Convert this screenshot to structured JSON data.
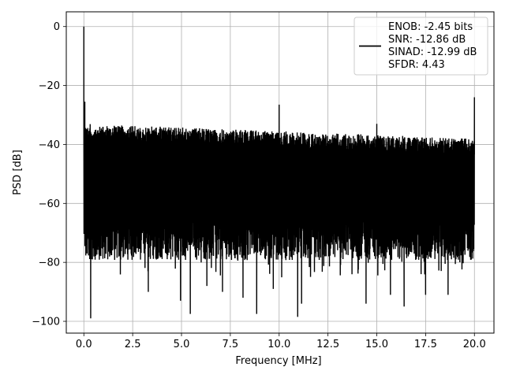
{
  "chart_data": {
    "type": "line",
    "xlabel": "Frequency [MHz]",
    "ylabel": "PSD [dB]",
    "xlim": [
      -0.9,
      21.0
    ],
    "ylim": [
      -104,
      5
    ],
    "xticks": [
      0.0,
      2.5,
      5.0,
      7.5,
      10.0,
      12.5,
      15.0,
      17.5,
      20.0
    ],
    "xtick_labels": [
      "0.0",
      "2.5",
      "5.0",
      "7.5",
      "10.0",
      "12.5",
      "15.0",
      "17.5",
      "20.0"
    ],
    "yticks": [
      0,
      -20,
      -40,
      -60,
      -80,
      -100
    ],
    "ytick_labels": [
      "0",
      "−20",
      "−40",
      "−60",
      "−80",
      "−100"
    ],
    "grid": true,
    "legend": {
      "placement": "upper-right",
      "entries": [
        "ENOB: -2.45 bits",
        "SNR: -12.86 dB",
        "SINAD: -12.99 dB",
        "SFDR: 4.43"
      ]
    },
    "series": [
      {
        "color": "#000000",
        "noise_floor": {
          "x_start": 0.0,
          "x_end": 20.0,
          "upper_start": -33,
          "upper_end": -38,
          "lower_typical": -75
        },
        "peaks": [
          {
            "x": 0.0,
            "y": 0.0
          },
          {
            "x": 0.05,
            "y": -25.5
          },
          {
            "x": 10.0,
            "y": -26.5
          },
          {
            "x": 15.0,
            "y": -33.0
          },
          {
            "x": 20.0,
            "y": -24.0
          }
        ],
        "dips": [
          {
            "x": 0.35,
            "y": -99.0
          },
          {
            "x": 3.3,
            "y": -90.0
          },
          {
            "x": 4.95,
            "y": -93.0
          },
          {
            "x": 5.45,
            "y": -97.5
          },
          {
            "x": 6.3,
            "y": -88.0
          },
          {
            "x": 7.1,
            "y": -90.0
          },
          {
            "x": 8.15,
            "y": -92.0
          },
          {
            "x": 8.85,
            "y": -97.5
          },
          {
            "x": 9.7,
            "y": -89.0
          },
          {
            "x": 10.95,
            "y": -98.5
          },
          {
            "x": 11.15,
            "y": -94.0
          },
          {
            "x": 14.45,
            "y": -94.0
          },
          {
            "x": 15.7,
            "y": -91.0
          },
          {
            "x": 16.4,
            "y": -95.0
          },
          {
            "x": 17.5,
            "y": -91.0
          },
          {
            "x": 18.65,
            "y": -91.0
          }
        ]
      }
    ]
  }
}
